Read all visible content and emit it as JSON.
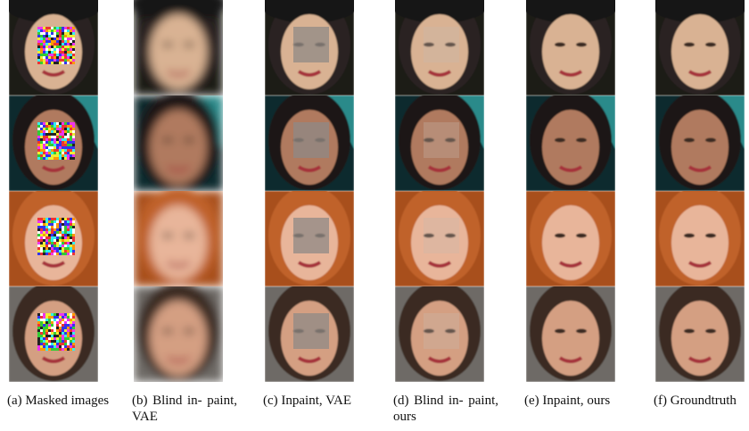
{
  "figure": {
    "captions": [
      "(a) Masked images",
      "(b) Blind in- paint, VAE",
      "(c) Inpaint, VAE",
      "(d) Blind in- paint, ours",
      "(e) Inpaint, ours",
      "(f) Groundtruth"
    ]
  }
}
